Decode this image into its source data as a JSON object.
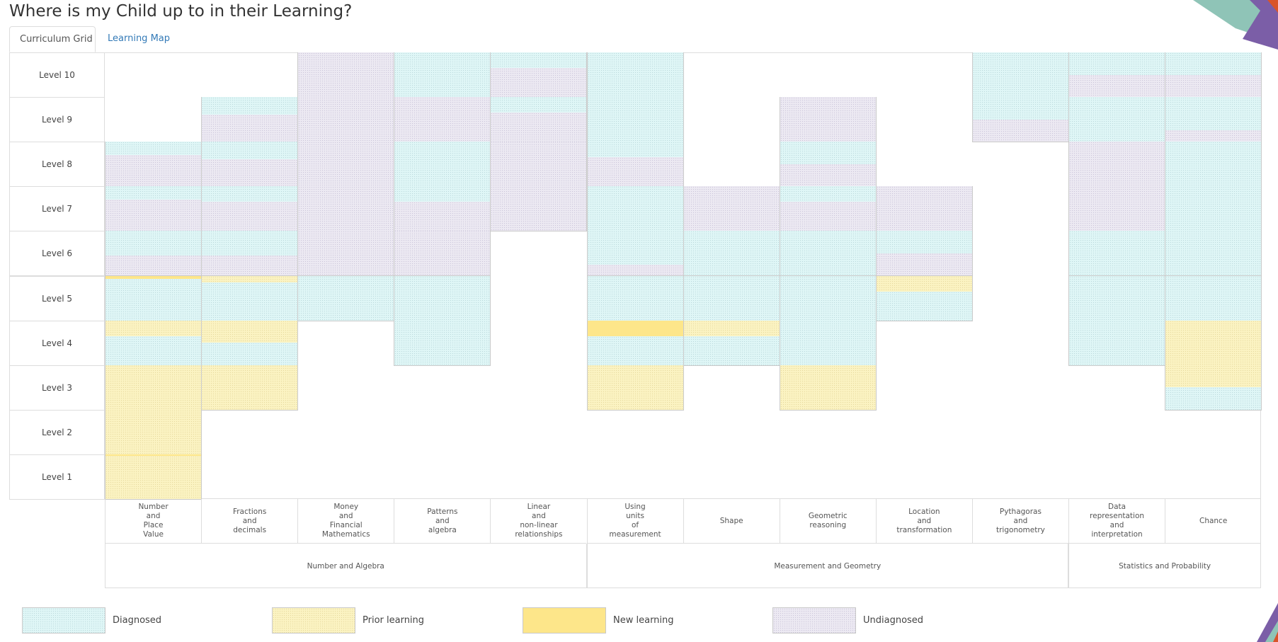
{
  "page": {
    "title": "Where is my Child up to in their Learning?"
  },
  "tabs": [
    {
      "label": "Curriculum Grid",
      "active": true
    },
    {
      "label": "Learning Map",
      "active": false
    }
  ],
  "levels": [
    "Level 10",
    "Level 9",
    "Level 8",
    "Level 7",
    "Level 6",
    "Level 5",
    "Level 4",
    "Level 3",
    "Level 2",
    "Level 1"
  ],
  "strands": [
    {
      "lines": [
        "Number",
        "and",
        "Place",
        "Value"
      ]
    },
    {
      "lines": [
        "Fractions",
        "and",
        "decimals"
      ]
    },
    {
      "lines": [
        "Money",
        "and",
        "Financial",
        "Mathematics"
      ]
    },
    {
      "lines": [
        "Patterns",
        "and",
        "algebra"
      ]
    },
    {
      "lines": [
        "Linear",
        "and",
        "non-linear",
        "relationships"
      ]
    },
    {
      "lines": [
        "Using",
        "units",
        "of",
        "measurement"
      ]
    },
    {
      "lines": [
        "Shape"
      ]
    },
    {
      "lines": [
        "Geometric",
        "reasoning"
      ]
    },
    {
      "lines": [
        "Location",
        "and",
        "transformation"
      ]
    },
    {
      "lines": [
        "Pythagoras",
        "and",
        "trigonometry"
      ]
    },
    {
      "lines": [
        "Data",
        "representation",
        "and",
        "interpretation"
      ]
    },
    {
      "lines": [
        "Chance"
      ]
    }
  ],
  "groups": [
    {
      "label": "Number and Algebra",
      "span": 5
    },
    {
      "label": "Measurement and Geometry",
      "span": 5
    },
    {
      "label": "Statistics and Probability",
      "span": 2
    }
  ],
  "legend": [
    {
      "key": "diag",
      "label": "Diagnosed"
    },
    {
      "key": "prior",
      "label": "Prior learning"
    },
    {
      "key": "newl",
      "label": "New learning"
    },
    {
      "key": "undiag",
      "label": "Undiagnosed"
    }
  ],
  "grid_cells": [
    {
      "strand": 0,
      "level": 8,
      "bands": [
        [
          "diag",
          0.3
        ],
        [
          "undiag",
          0.7
        ]
      ]
    },
    {
      "strand": 0,
      "level": 7,
      "bands": [
        [
          "diag",
          0.3
        ],
        [
          "undiag",
          0.7
        ]
      ]
    },
    {
      "strand": 0,
      "level": 6,
      "bands": [
        [
          "diag",
          0.55
        ],
        [
          "undiag",
          0.45
        ]
      ]
    },
    {
      "strand": 0,
      "level": 5,
      "bands": [
        [
          "newl",
          0.07
        ],
        [
          "diag",
          0.93
        ]
      ]
    },
    {
      "strand": 0,
      "level": 4,
      "bands": [
        [
          "prior",
          0.35
        ],
        [
          "diag",
          0.65
        ]
      ]
    },
    {
      "strand": 0,
      "level": 3,
      "bands": [
        [
          "prior",
          1.0
        ]
      ]
    },
    {
      "strand": 0,
      "level": 2,
      "bands": [
        [
          "prior",
          1.0
        ]
      ]
    },
    {
      "strand": 0,
      "level": 1,
      "bands": [
        [
          "newl",
          0.04
        ],
        [
          "prior",
          0.96
        ]
      ]
    },
    {
      "strand": 1,
      "level": 9,
      "bands": [
        [
          "diag",
          0.4
        ],
        [
          "undiag",
          0.6
        ]
      ]
    },
    {
      "strand": 1,
      "level": 8,
      "bands": [
        [
          "diag",
          0.4
        ],
        [
          "undiag",
          0.6
        ]
      ]
    },
    {
      "strand": 1,
      "level": 7,
      "bands": [
        [
          "diag",
          0.35
        ],
        [
          "undiag",
          0.65
        ]
      ]
    },
    {
      "strand": 1,
      "level": 6,
      "bands": [
        [
          "diag",
          0.55
        ],
        [
          "undiag",
          0.45
        ]
      ]
    },
    {
      "strand": 1,
      "level": 5,
      "bands": [
        [
          "prior",
          0.15
        ],
        [
          "diag",
          0.85
        ]
      ]
    },
    {
      "strand": 1,
      "level": 4,
      "bands": [
        [
          "prior",
          0.5
        ],
        [
          "diag",
          0.5
        ]
      ]
    },
    {
      "strand": 1,
      "level": 3,
      "bands": [
        [
          "prior",
          1.0
        ]
      ]
    },
    {
      "strand": 2,
      "level": 10,
      "bands": [
        [
          "undiag",
          1.0
        ]
      ]
    },
    {
      "strand": 2,
      "level": 9,
      "bands": [
        [
          "undiag",
          1.0
        ]
      ]
    },
    {
      "strand": 2,
      "level": 8,
      "bands": [
        [
          "undiag",
          1.0
        ]
      ]
    },
    {
      "strand": 2,
      "level": 7,
      "bands": [
        [
          "undiag",
          1.0
        ]
      ]
    },
    {
      "strand": 2,
      "level": 6,
      "bands": [
        [
          "undiag",
          1.0
        ]
      ]
    },
    {
      "strand": 2,
      "level": 5,
      "bands": [
        [
          "diag",
          1.0
        ]
      ]
    },
    {
      "strand": 3,
      "level": 10,
      "bands": [
        [
          "diag",
          1.0
        ]
      ]
    },
    {
      "strand": 3,
      "level": 9,
      "bands": [
        [
          "undiag",
          1.0
        ]
      ]
    },
    {
      "strand": 3,
      "level": 8,
      "bands": [
        [
          "diag",
          1.0
        ]
      ]
    },
    {
      "strand": 3,
      "level": 7,
      "bands": [
        [
          "diag",
          0.35
        ],
        [
          "undiag",
          0.65
        ]
      ]
    },
    {
      "strand": 3,
      "level": 6,
      "bands": [
        [
          "undiag",
          1.0
        ]
      ]
    },
    {
      "strand": 3,
      "level": 5,
      "bands": [
        [
          "diag",
          1.0
        ]
      ]
    },
    {
      "strand": 3,
      "level": 4,
      "bands": [
        [
          "diag",
          1.0
        ]
      ]
    },
    {
      "strand": 4,
      "level": 10,
      "bands": [
        [
          "diag",
          0.35
        ],
        [
          "undiag",
          0.65
        ]
      ]
    },
    {
      "strand": 4,
      "level": 9,
      "bands": [
        [
          "diag",
          0.35
        ],
        [
          "undiag",
          0.65
        ]
      ]
    },
    {
      "strand": 4,
      "level": 8,
      "bands": [
        [
          "undiag",
          1.0
        ]
      ]
    },
    {
      "strand": 4,
      "level": 7,
      "bands": [
        [
          "undiag",
          1.0
        ]
      ]
    },
    {
      "strand": 5,
      "level": 10,
      "bands": [
        [
          "diag",
          1.0
        ]
      ]
    },
    {
      "strand": 5,
      "level": 9,
      "bands": [
        [
          "diag",
          1.0
        ]
      ]
    },
    {
      "strand": 5,
      "level": 8,
      "bands": [
        [
          "diag",
          0.35
        ],
        [
          "undiag",
          0.65
        ]
      ]
    },
    {
      "strand": 5,
      "level": 7,
      "bands": [
        [
          "diag",
          1.0
        ]
      ]
    },
    {
      "strand": 5,
      "level": 6,
      "bands": [
        [
          "diag",
          0.75
        ],
        [
          "undiag",
          0.25
        ]
      ]
    },
    {
      "strand": 5,
      "level": 5,
      "bands": [
        [
          "diag",
          1.0
        ]
      ]
    },
    {
      "strand": 5,
      "level": 4,
      "bands": [
        [
          "newl",
          0.35
        ],
        [
          "diag",
          0.65
        ]
      ]
    },
    {
      "strand": 5,
      "level": 3,
      "bands": [
        [
          "prior",
          1.0
        ]
      ]
    },
    {
      "strand": 6,
      "level": 7,
      "bands": [
        [
          "undiag",
          1.0
        ]
      ]
    },
    {
      "strand": 6,
      "level": 6,
      "bands": [
        [
          "diag",
          1.0
        ]
      ]
    },
    {
      "strand": 6,
      "level": 5,
      "bands": [
        [
          "diag",
          1.0
        ]
      ]
    },
    {
      "strand": 6,
      "level": 4,
      "bands": [
        [
          "prior",
          0.35
        ],
        [
          "diag",
          0.65
        ]
      ]
    },
    {
      "strand": 7,
      "level": 9,
      "bands": [
        [
          "undiag",
          1.0
        ]
      ]
    },
    {
      "strand": 7,
      "level": 8,
      "bands": [
        [
          "diag",
          0.5
        ],
        [
          "undiag",
          0.5
        ]
      ]
    },
    {
      "strand": 7,
      "level": 7,
      "bands": [
        [
          "diag",
          0.35
        ],
        [
          "undiag",
          0.65
        ]
      ]
    },
    {
      "strand": 7,
      "level": 6,
      "bands": [
        [
          "diag",
          1.0
        ]
      ]
    },
    {
      "strand": 7,
      "level": 5,
      "bands": [
        [
          "diag",
          1.0
        ]
      ]
    },
    {
      "strand": 7,
      "level": 4,
      "bands": [
        [
          "diag",
          1.0
        ]
      ]
    },
    {
      "strand": 7,
      "level": 3,
      "bands": [
        [
          "prior",
          1.0
        ]
      ]
    },
    {
      "strand": 8,
      "level": 7,
      "bands": [
        [
          "undiag",
          1.0
        ]
      ]
    },
    {
      "strand": 8,
      "level": 6,
      "bands": [
        [
          "diag",
          0.5
        ],
        [
          "undiag",
          0.5
        ]
      ]
    },
    {
      "strand": 8,
      "level": 5,
      "bands": [
        [
          "prior",
          0.35
        ],
        [
          "diag",
          0.65
        ]
      ]
    },
    {
      "strand": 9,
      "level": 10,
      "bands": [
        [
          "diag",
          1.0
        ]
      ]
    },
    {
      "strand": 9,
      "level": 9,
      "bands": [
        [
          "diag",
          0.5
        ],
        [
          "undiag",
          0.5
        ]
      ]
    },
    {
      "strand": 10,
      "level": 10,
      "bands": [
        [
          "diag",
          0.5
        ],
        [
          "undiag",
          0.5
        ]
      ]
    },
    {
      "strand": 10,
      "level": 9,
      "bands": [
        [
          "diag",
          1.0
        ]
      ]
    },
    {
      "strand": 10,
      "level": 8,
      "bands": [
        [
          "undiag",
          1.0
        ]
      ]
    },
    {
      "strand": 10,
      "level": 7,
      "bands": [
        [
          "undiag",
          1.0
        ]
      ]
    },
    {
      "strand": 10,
      "level": 6,
      "bands": [
        [
          "diag",
          1.0
        ]
      ]
    },
    {
      "strand": 10,
      "level": 5,
      "bands": [
        [
          "diag",
          1.0
        ]
      ]
    },
    {
      "strand": 10,
      "level": 4,
      "bands": [
        [
          "diag",
          1.0
        ]
      ]
    },
    {
      "strand": 11,
      "level": 10,
      "bands": [
        [
          "diag",
          0.5
        ],
        [
          "undiag",
          0.5
        ]
      ]
    },
    {
      "strand": 11,
      "level": 9,
      "bands": [
        [
          "diag",
          0.75
        ],
        [
          "undiag",
          0.25
        ]
      ]
    },
    {
      "strand": 11,
      "level": 8,
      "bands": [
        [
          "diag",
          1.0
        ]
      ]
    },
    {
      "strand": 11,
      "level": 7,
      "bands": [
        [
          "diag",
          1.0
        ]
      ]
    },
    {
      "strand": 11,
      "level": 6,
      "bands": [
        [
          "diag",
          1.0
        ]
      ]
    },
    {
      "strand": 11,
      "level": 5,
      "bands": [
        [
          "diag",
          1.0
        ]
      ]
    },
    {
      "strand": 11,
      "level": 4,
      "bands": [
        [
          "prior",
          1.0
        ]
      ]
    },
    {
      "strand": 11,
      "level": 3,
      "bands": [
        [
          "prior",
          0.5
        ],
        [
          "diag",
          0.5
        ]
      ]
    }
  ]
}
